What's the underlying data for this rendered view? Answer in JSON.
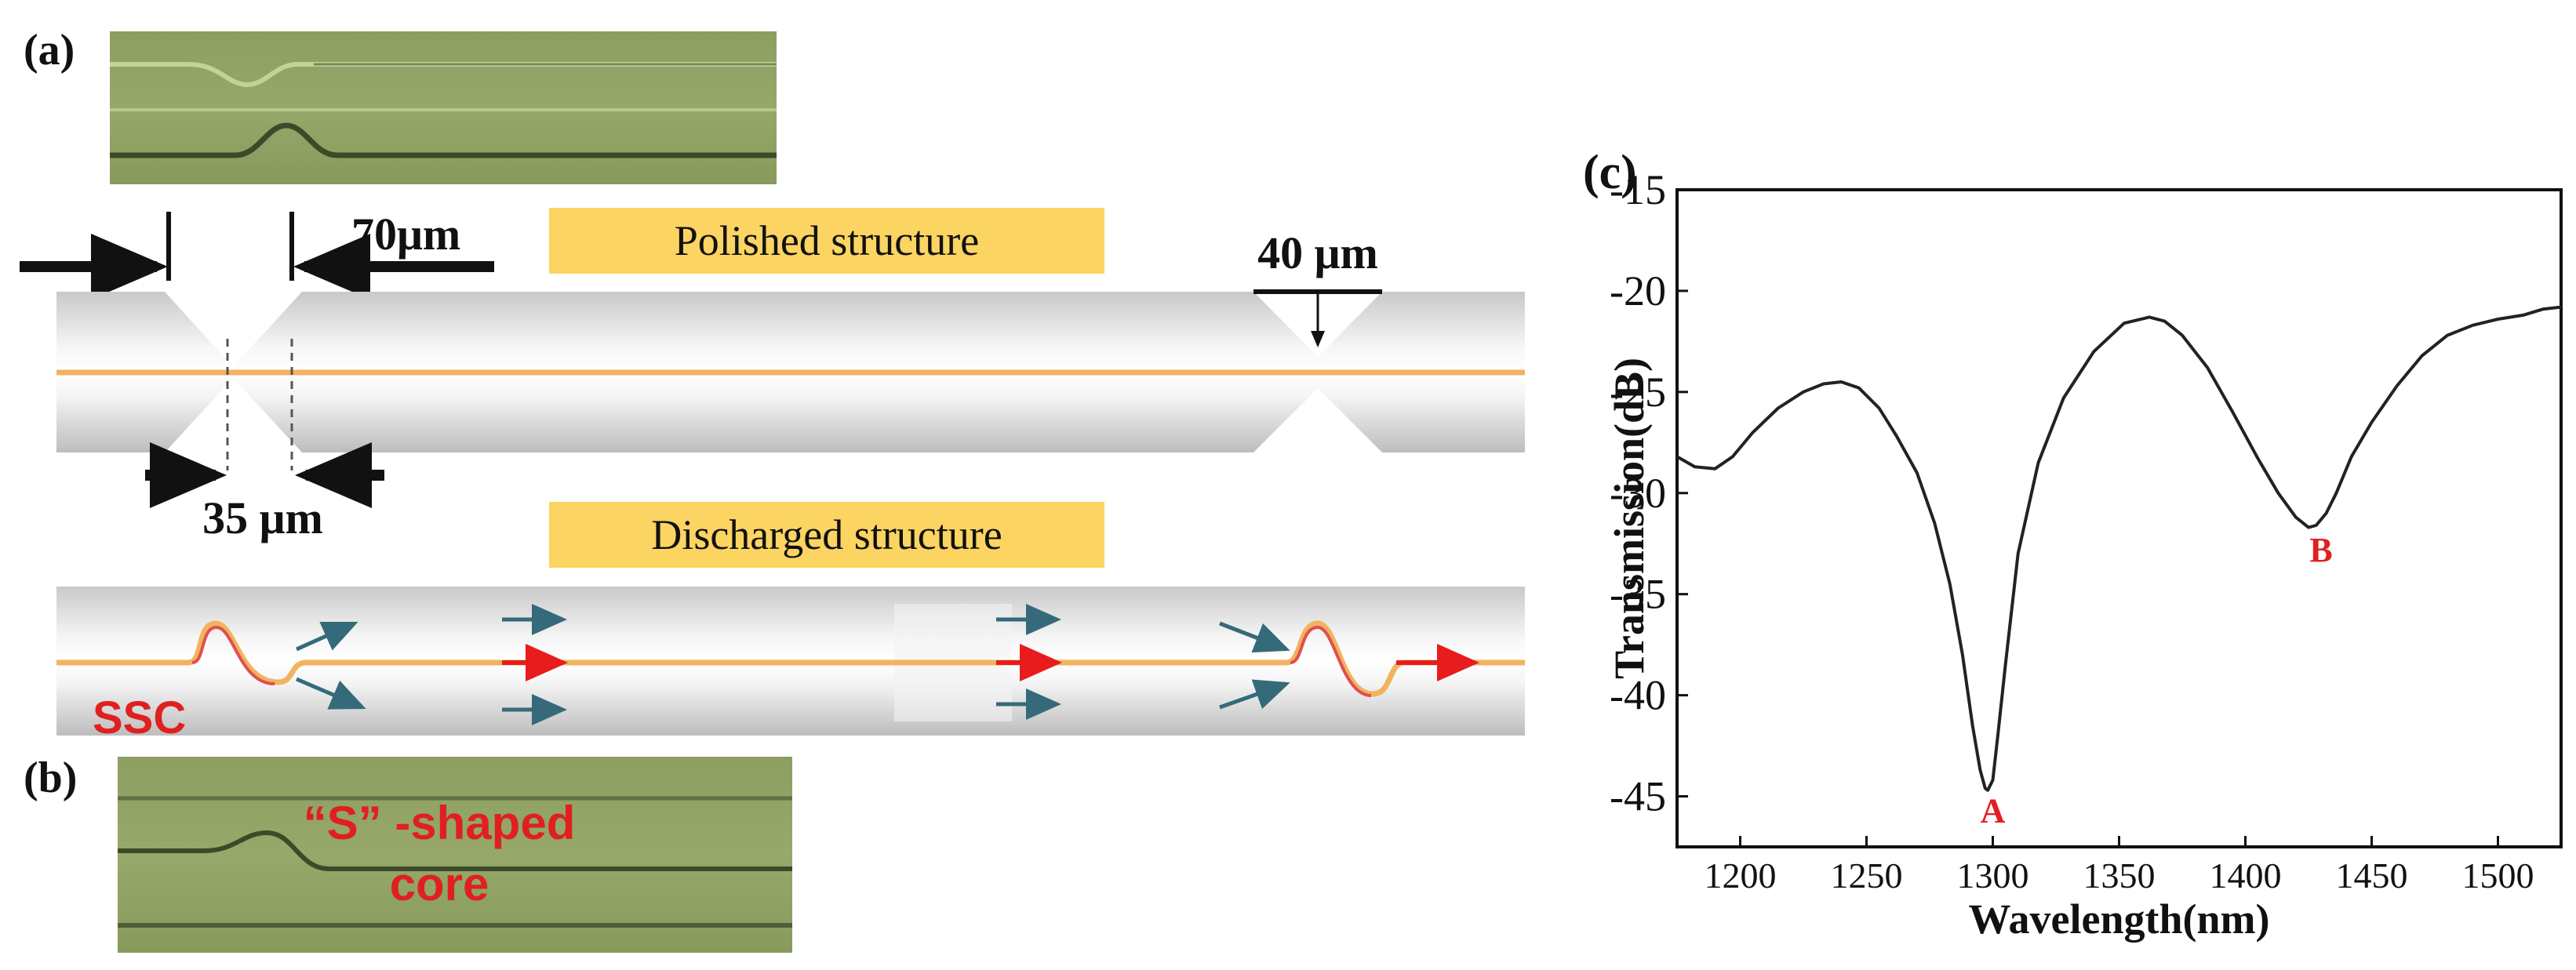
{
  "panel_a": {
    "label": "(a)",
    "polished_title": "Polished structure",
    "dim_70": "70μm",
    "dim_40": "40 μm",
    "dim_35": "35 μm",
    "discharged_title": "Discharged structure",
    "ssc_label": "SSC"
  },
  "panel_b": {
    "label": "(b)",
    "micro_line1": "“S” -shaped",
    "micro_line2": "core"
  },
  "panel_c": {
    "label": "(c)"
  },
  "colors": {
    "highlight_box": "#fcd462",
    "micro_green": "#8fa262",
    "fiber_core": "#f2b35f",
    "arrow_teal": "#356a7a",
    "arrow_red": "#e81c1c",
    "annotation_red": "#e02020"
  },
  "chart_data": {
    "type": "line",
    "title": "",
    "xlabel": "Wavelength(nm)",
    "ylabel": "Transmission(dB)",
    "xlim": [
      1175,
      1525
    ],
    "ylim": [
      -47.5,
      -15
    ],
    "xticks": [
      1200,
      1250,
      1300,
      1350,
      1400,
      1450,
      1500
    ],
    "yticks": [
      -15,
      -20,
      -25,
      -30,
      -35,
      -40,
      -45
    ],
    "series": [
      {
        "name": "Transmission",
        "color": "#222222",
        "x": [
          1175,
          1182,
          1190,
          1197,
          1205,
          1215,
          1225,
          1233,
          1240,
          1247,
          1255,
          1262,
          1270,
          1277,
          1283,
          1288,
          1292,
          1295,
          1297,
          1298,
          1300,
          1302,
          1305,
          1310,
          1318,
          1328,
          1340,
          1352,
          1362,
          1368,
          1375,
          1385,
          1395,
          1405,
          1413,
          1420,
          1425,
          1428,
          1432,
          1436,
          1442,
          1450,
          1460,
          1470,
          1480,
          1490,
          1500,
          1510,
          1518,
          1525
        ],
        "y": [
          -28.2,
          -28.7,
          -28.8,
          -28.2,
          -27.0,
          -25.8,
          -25.0,
          -24.6,
          -24.5,
          -24.8,
          -25.8,
          -27.2,
          -29.0,
          -31.5,
          -34.5,
          -38.0,
          -41.5,
          -43.7,
          -44.6,
          -44.7,
          -44.2,
          -42.0,
          -38.5,
          -33.0,
          -28.5,
          -25.3,
          -23.0,
          -21.6,
          -21.3,
          -21.5,
          -22.2,
          -23.8,
          -26.0,
          -28.3,
          -30.0,
          -31.2,
          -31.7,
          -31.6,
          -31.0,
          -30.0,
          -28.2,
          -26.5,
          -24.7,
          -23.2,
          -22.2,
          -21.7,
          -21.4,
          -21.2,
          -20.9,
          -20.8
        ]
      }
    ],
    "annotations": [
      {
        "text": "A",
        "x": 1300,
        "y": -45.5
      },
      {
        "text": "B",
        "x": 1430,
        "y": -32.6
      }
    ]
  }
}
